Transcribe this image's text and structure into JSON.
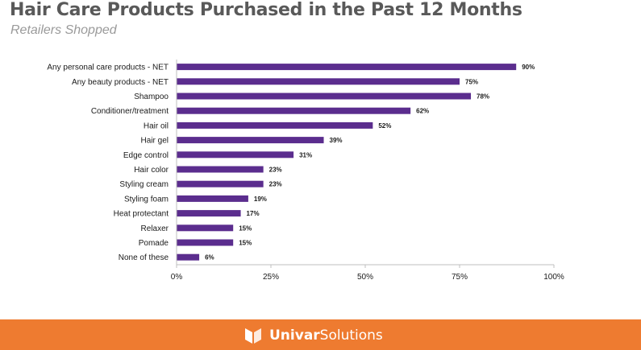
{
  "title": "Hair Care Products Purchased in the Past 12 Months",
  "subtitle": "Retailers Shopped",
  "colors": {
    "bar": "#5b2d8e",
    "footer": "#ee7b30",
    "axis": "#bfbfbf",
    "text": "#1a1a1a"
  },
  "footer": {
    "brand_word1": "Univar",
    "brand_word2": "Solutions",
    "logo_icon": "univar-logo-icon"
  },
  "chart_data": {
    "type": "bar",
    "orientation": "horizontal",
    "title": "",
    "xlabel": "",
    "ylabel": "",
    "xlim": [
      0,
      100
    ],
    "grid": false,
    "legend": "none",
    "categories": [
      "Any personal care products - NET",
      "Any beauty products - NET",
      "Shampoo",
      "Conditioner/treatment",
      "Hair oil",
      "Hair gel",
      "Edge control",
      "Hair color",
      "Styling cream",
      "Styling foam",
      "Heat protectant",
      "Relaxer",
      "Pomade",
      "None of these"
    ],
    "values": [
      90,
      75,
      78,
      62,
      52,
      39,
      31,
      23,
      23,
      19,
      17,
      15,
      15,
      6
    ],
    "data_labels": [
      "90%",
      "75%",
      "78%",
      "62%",
      "52%",
      "39%",
      "31%",
      "23%",
      "23%",
      "19%",
      "17%",
      "15%",
      "15%",
      "6%"
    ],
    "xticks": [
      0,
      25,
      50,
      75,
      100
    ],
    "xtick_labels": [
      "0%",
      "25%",
      "50%",
      "75%",
      "100%"
    ]
  }
}
